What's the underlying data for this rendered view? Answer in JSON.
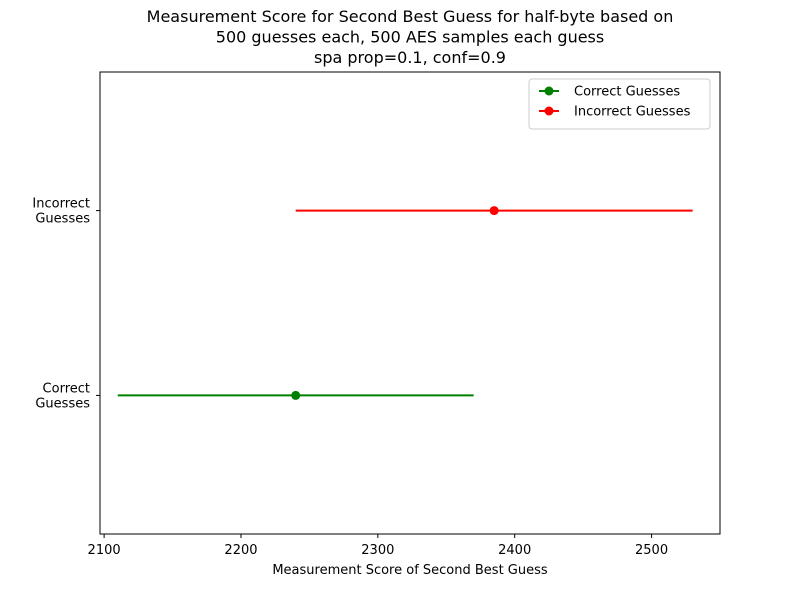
{
  "chart_data": {
    "type": "errorbar",
    "orientation": "horizontal",
    "title": [
      "Measurement Score for Second Best Guess for half-byte based on",
      "500 guesses each, 500 AES samples each guess",
      "spa prop=0.1, conf=0.9"
    ],
    "xlabel": "Measurement Score of Second Best Guess",
    "ylabel": "",
    "xlim": [
      2097,
      2550
    ],
    "xticks": [
      2100,
      2200,
      2300,
      2400,
      2500
    ],
    "categories": [
      {
        "lines": [
          "Correct",
          "Guesses"
        ]
      },
      {
        "lines": [
          "Incorrect",
          "Guesses"
        ]
      }
    ],
    "series": [
      {
        "name": "Correct Guesses",
        "category_index": 0,
        "value": 2240,
        "low": 2110,
        "high": 2370,
        "color": "#008000"
      },
      {
        "name": "Incorrect Guesses",
        "category_index": 1,
        "value": 2385,
        "low": 2240,
        "high": 2530,
        "color": "#ff0000"
      }
    ],
    "legend": {
      "placement": "top-right"
    },
    "grid": false
  }
}
